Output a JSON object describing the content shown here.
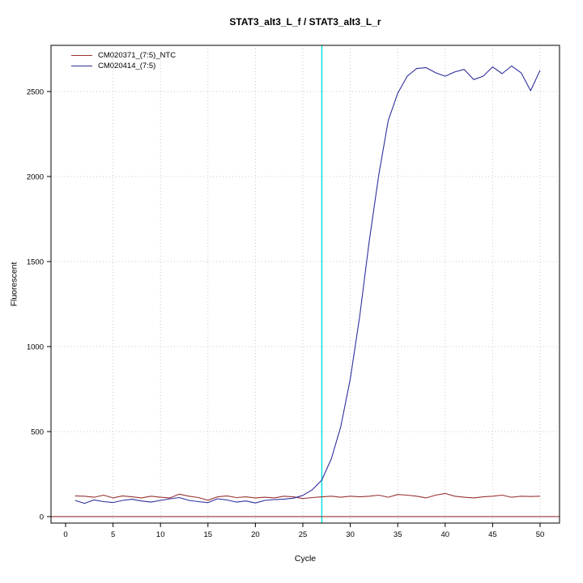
{
  "chart_data": {
    "type": "line",
    "title": "STAT3_alt3_L_f / STAT3_alt3_L_r",
    "xlabel": "Cycle",
    "ylabel": "Fluorescent",
    "xlim": [
      0,
      50
    ],
    "ylim": [
      0,
      2650
    ],
    "x_ticks": [
      0,
      5,
      10,
      15,
      20,
      25,
      30,
      35,
      40,
      45,
      50
    ],
    "y_ticks": [
      0,
      500,
      1000,
      1500,
      2000,
      2500
    ],
    "grid": true,
    "grid_color": "#c8c8c8",
    "legend_position": "top-left",
    "threshold_cycle": 27,
    "threshold_color": "#00dcdc",
    "baseline_value": 0,
    "baseline_color": "#8b1a1a",
    "series": [
      {
        "name": "CM020371_(7:5)_NTC",
        "color": "#993333",
        "x": [
          1,
          2,
          3,
          4,
          5,
          6,
          7,
          8,
          9,
          10,
          11,
          12,
          13,
          14,
          15,
          16,
          17,
          18,
          19,
          20,
          21,
          22,
          23,
          24,
          25,
          26,
          27,
          28,
          29,
          30,
          31,
          32,
          33,
          34,
          35,
          36,
          37,
          38,
          39,
          40,
          41,
          42,
          43,
          44,
          45,
          46,
          47,
          48,
          49,
          50
        ],
        "values": [
          122,
          120,
          114,
          126,
          110,
          122,
          116,
          110,
          120,
          114,
          110,
          132,
          120,
          112,
          96,
          116,
          122,
          112,
          116,
          110,
          114,
          110,
          120,
          116,
          106,
          112,
          116,
          120,
          114,
          120,
          116,
          120,
          126,
          114,
          130,
          126,
          120,
          110,
          126,
          136,
          120,
          114,
          110,
          116,
          120,
          126,
          114,
          120,
          118,
          120
        ]
      },
      {
        "name": "CM020414_(7:5)",
        "color": "#2f2f9e",
        "x": [
          1,
          2,
          3,
          4,
          5,
          6,
          7,
          8,
          9,
          10,
          11,
          12,
          13,
          14,
          15,
          16,
          17,
          18,
          19,
          20,
          21,
          22,
          23,
          24,
          25,
          26,
          27,
          28,
          29,
          30,
          31,
          32,
          33,
          34,
          35,
          36,
          37,
          38,
          39,
          40,
          41,
          42,
          43,
          44,
          45,
          46,
          47,
          48,
          49,
          50
        ],
        "values": [
          95,
          78,
          98,
          88,
          83,
          95,
          102,
          92,
          85,
          95,
          105,
          112,
          95,
          88,
          82,
          105,
          98,
          85,
          92,
          80,
          95,
          100,
          103,
          108,
          125,
          158,
          215,
          340,
          530,
          810,
          1180,
          1620,
          2010,
          2330,
          2490,
          2590,
          2635,
          2640,
          2610,
          2590,
          2615,
          2630,
          2570,
          2590,
          2645,
          2605,
          2650,
          2610,
          2505,
          2625
        ]
      }
    ]
  }
}
